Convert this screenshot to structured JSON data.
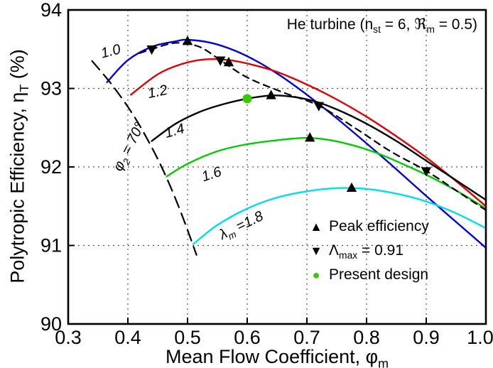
{
  "figure": {
    "bg_color": "#ffffff",
    "annotation": {
      "pre": "He turbine (n",
      "sub1": "st",
      "mid": " = 6, ℜ",
      "sub2": "m",
      "post": " = 0.5)"
    },
    "legend": {
      "items": [
        {
          "symbol": "triangle-up-icon",
          "color": "#000000",
          "pre": "Peak efficiency",
          "sub": "",
          "post": ""
        },
        {
          "symbol": "triangle-down-icon",
          "color": "#000000",
          "pre": "Λ",
          "sub": "max",
          "post": " = 0.91"
        },
        {
          "symbol": "circle-icon",
          "color": "#33cc00",
          "pre": "Present design",
          "sub": "",
          "post": ""
        }
      ]
    }
  },
  "chart_data": {
    "type": "line",
    "title": "He turbine (n_st = 6, ℜ_m = 0.5)",
    "xlabel": {
      "pre": "Mean Flow Coefficient, φ",
      "sub": "m",
      "post": ""
    },
    "ylabel": {
      "pre": "Polytropic Efficiency, η",
      "sub": "T",
      "post": " (%)"
    },
    "xlim": [
      0.3,
      1.0
    ],
    "ylim": [
      90,
      94
    ],
    "x_ticks": [
      0.3,
      0.4,
      0.5,
      0.6,
      0.7,
      0.8,
      0.9,
      1.0
    ],
    "x_tick_labels": [
      "0.3",
      "0.4",
      "0.5",
      "0.6",
      "0.7",
      "0.8",
      "0.9",
      "1.0"
    ],
    "y_ticks": [
      90,
      91,
      92,
      93,
      94
    ],
    "y_tick_labels": [
      "90",
      "91",
      "92",
      "93",
      "94"
    ],
    "grid": true,
    "legend_position": "inside lower-right",
    "series": [
      {
        "id": "lambda-1.0",
        "name": "λ_m = 1.0",
        "color": "#0000e0",
        "width": 2.4,
        "dash": null,
        "points": [
          [
            0.365,
            93.08
          ],
          [
            0.4,
            93.36
          ],
          [
            0.44,
            93.53
          ],
          [
            0.48,
            93.6
          ],
          [
            0.5,
            93.62
          ],
          [
            0.54,
            93.58
          ],
          [
            0.58,
            93.48
          ],
          [
            0.62,
            93.33
          ],
          [
            0.66,
            93.14
          ],
          [
            0.7,
            92.92
          ],
          [
            0.75,
            92.62
          ],
          [
            0.8,
            92.3
          ],
          [
            0.85,
            91.97
          ],
          [
            0.9,
            91.63
          ],
          [
            0.95,
            91.3
          ],
          [
            1.0,
            90.97
          ]
        ]
      },
      {
        "id": "lambda-1.2",
        "name": "λ_m = 1.2",
        "color": "#e00000",
        "width": 2.4,
        "dash": null,
        "points": [
          [
            0.405,
            92.92
          ],
          [
            0.45,
            93.18
          ],
          [
            0.49,
            93.31
          ],
          [
            0.53,
            93.37
          ],
          [
            0.57,
            93.36
          ],
          [
            0.61,
            93.3
          ],
          [
            0.65,
            93.21
          ],
          [
            0.7,
            93.05
          ],
          [
            0.75,
            92.86
          ],
          [
            0.8,
            92.64
          ],
          [
            0.85,
            92.39
          ],
          [
            0.9,
            92.12
          ],
          [
            0.95,
            91.82
          ],
          [
            1.0,
            91.5
          ]
        ]
      },
      {
        "id": "lambda-1.4",
        "name": "λ_m = 1.4",
        "color": "#000000",
        "width": 2.4,
        "dash": null,
        "points": [
          [
            0.44,
            92.33
          ],
          [
            0.48,
            92.55
          ],
          [
            0.52,
            92.7
          ],
          [
            0.56,
            92.8
          ],
          [
            0.6,
            92.87
          ],
          [
            0.64,
            92.91
          ],
          [
            0.68,
            92.89
          ],
          [
            0.72,
            92.82
          ],
          [
            0.76,
            92.7
          ],
          [
            0.8,
            92.55
          ],
          [
            0.85,
            92.33
          ],
          [
            0.9,
            92.08
          ],
          [
            0.95,
            91.83
          ],
          [
            1.0,
            91.58
          ]
        ]
      },
      {
        "id": "lambda-1.6",
        "name": "λ_m = 1.6",
        "color": "#00cc00",
        "width": 2.4,
        "dash": null,
        "points": [
          [
            0.465,
            91.88
          ],
          [
            0.5,
            92.04
          ],
          [
            0.55,
            92.2
          ],
          [
            0.6,
            92.29
          ],
          [
            0.65,
            92.34
          ],
          [
            0.7,
            92.37
          ],
          [
            0.74,
            92.34
          ],
          [
            0.78,
            92.27
          ],
          [
            0.82,
            92.17
          ],
          [
            0.86,
            92.04
          ],
          [
            0.9,
            91.9
          ],
          [
            0.95,
            91.7
          ],
          [
            1.0,
            91.47
          ]
        ]
      },
      {
        "id": "lambda-1.8",
        "name": "λ_m = 1.8",
        "color": "#00dcf0",
        "width": 2.4,
        "dash": null,
        "points": [
          [
            0.51,
            91.02
          ],
          [
            0.55,
            91.26
          ],
          [
            0.6,
            91.47
          ],
          [
            0.65,
            91.61
          ],
          [
            0.7,
            91.69
          ],
          [
            0.75,
            91.73
          ],
          [
            0.8,
            91.72
          ],
          [
            0.85,
            91.66
          ],
          [
            0.9,
            91.56
          ],
          [
            0.95,
            91.41
          ],
          [
            1.0,
            91.22
          ]
        ]
      },
      {
        "id": "lambda-max-locus",
        "name": "Λ_max = 0.91 locus",
        "color": "#000000",
        "width": 2.2,
        "dash": "9,7",
        "points": [
          [
            0.42,
            93.45
          ],
          [
            0.44,
            93.5
          ],
          [
            0.48,
            93.58
          ],
          [
            0.52,
            93.53
          ],
          [
            0.555,
            93.36
          ],
          [
            0.6,
            93.14
          ],
          [
            0.66,
            92.95
          ],
          [
            0.72,
            92.78
          ],
          [
            0.78,
            92.5
          ],
          [
            0.84,
            92.2
          ],
          [
            0.9,
            91.95
          ],
          [
            0.95,
            91.7
          ],
          [
            1.0,
            91.45
          ]
        ]
      },
      {
        "id": "phi2-70-line",
        "name": "φ_2 = 70°",
        "color": "#000000",
        "width": 2.2,
        "dash": "16,9",
        "points": [
          [
            0.34,
            93.35
          ],
          [
            0.375,
            93.03
          ],
          [
            0.41,
            92.65
          ],
          [
            0.44,
            92.25
          ],
          [
            0.465,
            91.86
          ],
          [
            0.49,
            91.4
          ],
          [
            0.515,
            90.88
          ]
        ]
      }
    ],
    "markers": [
      {
        "name": "peak-efficiency",
        "shape": "triangle-up",
        "color": "#000000",
        "points": [
          [
            0.5,
            93.6
          ],
          [
            0.569,
            93.33
          ],
          [
            0.64,
            92.91
          ],
          [
            0.705,
            92.37
          ],
          [
            0.775,
            91.73
          ]
        ]
      },
      {
        "name": "lambda-max",
        "shape": "triangle-down",
        "color": "#000000",
        "points": [
          [
            0.44,
            93.5
          ],
          [
            0.555,
            93.36
          ],
          [
            0.72,
            92.78
          ],
          [
            0.9,
            91.95
          ]
        ]
      },
      {
        "name": "present-design",
        "shape": "circle",
        "color": "#33cc00",
        "points": [
          [
            0.6,
            92.87
          ]
        ]
      }
    ],
    "curve_labels": [
      {
        "name": "curve-label-1.0",
        "x": 0.372,
        "y": 93.47,
        "rot": -14,
        "parts": [
          {
            "t": "1.0"
          }
        ]
      },
      {
        "name": "curve-label-1.2",
        "x": 0.45,
        "y": 92.95,
        "rot": -12,
        "parts": [
          {
            "t": "1.2"
          }
        ]
      },
      {
        "name": "curve-label-1.4",
        "x": 0.478,
        "y": 92.45,
        "rot": -16,
        "parts": [
          {
            "t": "1.4"
          }
        ]
      },
      {
        "name": "curve-label-1.6",
        "x": 0.54,
        "y": 91.9,
        "rot": -18,
        "parts": [
          {
            "t": "1.6"
          }
        ]
      },
      {
        "name": "curve-label-lambda-1.8",
        "x": 0.59,
        "y": 91.25,
        "rot": -26,
        "parts": [
          {
            "t": "λ"
          },
          {
            "t": "m",
            "sub": true
          },
          {
            "t": " =1.8"
          }
        ]
      },
      {
        "name": "curve-label-phi2-70",
        "x": 0.402,
        "y": 92.25,
        "rot": -63,
        "parts": [
          {
            "t": "φ"
          },
          {
            "t": "2",
            "sub": true
          },
          {
            "t": " = 70°"
          }
        ]
      }
    ]
  }
}
